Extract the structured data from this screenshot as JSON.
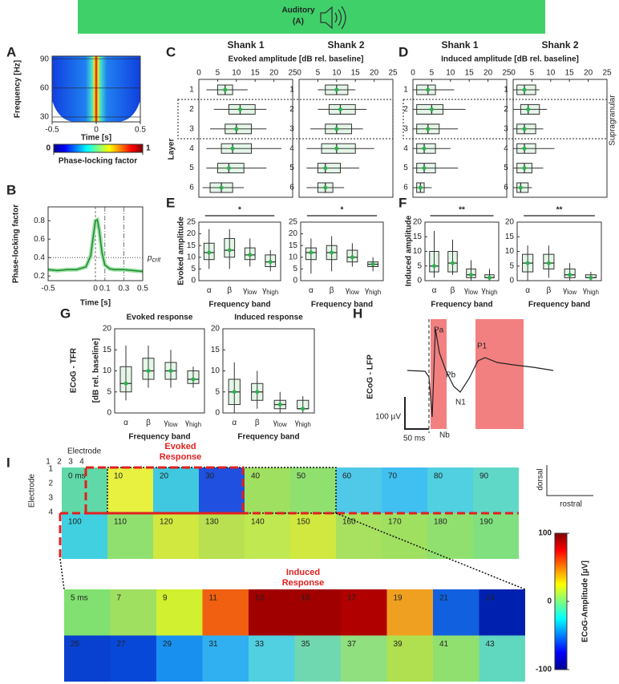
{
  "header": {
    "title": "Auditory",
    "subtitle": "(A)"
  },
  "A": {
    "label": "A",
    "ylabel": "Frequency [Hz]",
    "xlabel": "Time [s]",
    "xlim": [
      -0.5,
      0.5
    ],
    "xticks": [
      -0.5,
      0,
      0.5
    ],
    "ylim": [
      25,
      93
    ],
    "yticks": [
      30,
      60,
      90
    ],
    "colorbar": {
      "label": "Phase-locking factor",
      "lim": [
        0,
        1
      ],
      "ticks": [
        0,
        1
      ]
    }
  },
  "B": {
    "label": "B",
    "type": "line",
    "ylabel": "Phase-locking factor",
    "xlabel": "Time [s]",
    "xlim": [
      -0.5,
      0.5
    ],
    "ylim": [
      0.15,
      0.95
    ],
    "xticks": [
      -0.5,
      0,
      0.1,
      0.3,
      0.5
    ],
    "yticks": [
      0.2,
      0.4,
      0.6,
      0.8
    ],
    "color": "#1a8a2a",
    "x": [
      -0.5,
      -0.4,
      -0.3,
      -0.2,
      -0.1,
      -0.05,
      -0.02,
      0,
      0.02,
      0.04,
      0.07,
      0.1,
      0.15,
      0.2,
      0.3,
      0.4,
      0.5
    ],
    "y": [
      0.27,
      0.26,
      0.27,
      0.27,
      0.3,
      0.42,
      0.65,
      0.8,
      0.81,
      0.7,
      0.45,
      0.32,
      0.28,
      0.27,
      0.27,
      0.26,
      0.25
    ],
    "threshold": {
      "name": "p",
      "sub": "crit",
      "value": 0.4
    }
  },
  "C": {
    "label": "C",
    "title": "Evoked amplitude [dB rel. baseline]",
    "ylabel": "Layer",
    "xlim": [
      0,
      25
    ],
    "xticks": [
      0,
      5,
      10,
      15,
      20,
      25
    ],
    "layers": [
      1,
      2,
      3,
      4,
      5,
      6
    ],
    "shanks": [
      {
        "name": "Shank 1",
        "boxes": [
          [
            2,
            5,
            7,
            9,
            13
          ],
          [
            4,
            8,
            11,
            15,
            18
          ],
          [
            3,
            7,
            10,
            14,
            18
          ],
          [
            2,
            6,
            9,
            14,
            22
          ],
          [
            2,
            5,
            8,
            12,
            18
          ],
          [
            1,
            3,
            6,
            9,
            12
          ]
        ]
      },
      {
        "name": "Shank 2",
        "boxes": [
          [
            5,
            7,
            10,
            13,
            15
          ],
          [
            5,
            8,
            11,
            15,
            18
          ],
          [
            3,
            7,
            10,
            14,
            17
          ],
          [
            2,
            6,
            10,
            15,
            20
          ],
          [
            2,
            5,
            7,
            11,
            16
          ],
          [
            2,
            5,
            7,
            9,
            12
          ]
        ]
      }
    ]
  },
  "D": {
    "label": "D",
    "title": "Induced amplitude [dB rel. baseline]",
    "annotation": "Supragranular",
    "xlim": [
      0,
      25
    ],
    "xticks": [
      0,
      5,
      10,
      15,
      20,
      25
    ],
    "layers": [
      1,
      2,
      3,
      4,
      5,
      6
    ],
    "shanks": [
      {
        "name": "Shank 1",
        "boxes": [
          [
            0,
            1,
            4,
            6,
            11
          ],
          [
            0,
            1,
            5,
            8,
            14
          ],
          [
            0,
            1,
            4,
            7,
            12
          ],
          [
            0,
            1,
            3,
            6,
            10
          ],
          [
            0,
            1,
            3,
            6,
            12
          ],
          [
            0,
            1,
            2,
            3,
            5
          ]
        ]
      },
      {
        "name": "Shank 2",
        "boxes": [
          [
            0,
            1,
            3,
            6,
            7
          ],
          [
            0,
            2,
            4,
            7,
            9
          ],
          [
            0,
            1,
            3,
            6,
            8
          ],
          [
            0,
            1,
            3,
            6,
            11
          ],
          [
            0,
            1,
            3,
            5,
            8
          ],
          [
            0,
            1,
            2,
            4,
            5
          ]
        ]
      }
    ]
  },
  "E": {
    "label": "E",
    "ylabel": "Evoked amplitude",
    "xlabel": "Frequency band",
    "ylim": [
      0,
      25
    ],
    "yticks": [
      0,
      5,
      10,
      15,
      20,
      25
    ],
    "categories": [
      {
        "name": "α"
      },
      {
        "name": "β"
      },
      {
        "name": "γ",
        "sub": "low"
      },
      {
        "name": "γ",
        "sub": "high"
      }
    ],
    "groups": [
      {
        "significance": "*",
        "boxes": [
          [
            5,
            9,
            12,
            16,
            22
          ],
          [
            5,
            10,
            13,
            18,
            22
          ],
          [
            6,
            9,
            11,
            14,
            18
          ],
          [
            4,
            6,
            8,
            11,
            13
          ]
        ]
      },
      {
        "significance": "*",
        "boxes": [
          [
            3,
            9,
            12,
            14,
            18
          ],
          [
            4,
            9,
            12,
            15,
            19
          ],
          [
            6,
            8,
            10,
            13,
            16
          ],
          [
            4,
            6,
            7,
            8,
            10
          ]
        ]
      }
    ]
  },
  "F": {
    "label": "F",
    "ylabel": "Induced amplitude",
    "xlabel": "Frequency band",
    "ylim": [
      0,
      20
    ],
    "yticks": [
      0,
      5,
      10,
      15,
      20
    ],
    "categories": [
      {
        "name": "α"
      },
      {
        "name": "β"
      },
      {
        "name": "γ",
        "sub": "low"
      },
      {
        "name": "γ",
        "sub": "high"
      }
    ],
    "groups": [
      {
        "significance": "**",
        "boxes": [
          [
            1,
            3,
            5,
            10,
            17
          ],
          [
            2,
            3,
            6,
            10,
            14
          ],
          [
            0,
            1,
            2,
            4,
            7
          ],
          [
            0,
            1,
            1,
            2,
            4
          ]
        ]
      },
      {
        "significance": "**",
        "boxes": [
          [
            0,
            3,
            6,
            9,
            12
          ],
          [
            1,
            4,
            6,
            9,
            12
          ],
          [
            0,
            1,
            2,
            4,
            6
          ],
          [
            0,
            1,
            1,
            2,
            3
          ]
        ]
      }
    ]
  },
  "G": {
    "label": "G",
    "side_label": "ECoG - TFR",
    "ylabel": "[dB rel. baseline]",
    "xlabel": "Frequency band",
    "ylim": [
      0,
      20
    ],
    "yticks": [
      0,
      5,
      10,
      15,
      20
    ],
    "categories": [
      {
        "name": "α"
      },
      {
        "name": "β"
      },
      {
        "name": "γ",
        "sub": "low"
      },
      {
        "name": "γ",
        "sub": "high"
      }
    ],
    "groups": [
      {
        "title": "Evoked response",
        "boxes": [
          [
            3,
            5,
            7,
            11,
            16
          ],
          [
            6,
            8,
            10,
            13,
            16
          ],
          [
            6,
            8,
            10,
            12,
            15
          ],
          [
            6,
            7,
            8,
            10,
            11
          ]
        ]
      },
      {
        "title": "Induced response",
        "boxes": [
          [
            0,
            2,
            5,
            8,
            12
          ],
          [
            1,
            3,
            5,
            7,
            10
          ],
          [
            0,
            1,
            2,
            3,
            5
          ],
          [
            0,
            1,
            1,
            3,
            4
          ]
        ]
      }
    ]
  },
  "H": {
    "label": "H",
    "side_label": "ECoG - LFP",
    "peaks": [
      "Pa",
      "Pb",
      "N1",
      "P1",
      "Nb"
    ],
    "scale_y": "100 µV",
    "scale_x": "50 ms"
  },
  "I": {
    "label": "I",
    "electrode_label": "Electrode",
    "electrodes": [
      1,
      2,
      3,
      4
    ],
    "evoked_label": [
      "Evoked",
      "Response"
    ],
    "induced_label": [
      "Induced",
      "Response"
    ],
    "orientation": [
      "dorsal",
      "rostral"
    ],
    "tiles_row1": [
      "0 ms",
      "10",
      "20",
      "30",
      "40",
      "50",
      "60",
      "70",
      "80",
      "90"
    ],
    "tiles_row2": [
      "100",
      "110",
      "120",
      "130",
      "140",
      "150",
      "160",
      "170",
      "180",
      "190"
    ],
    "zoom_row1": [
      "5 ms",
      "7",
      "9",
      "11",
      "13",
      "15",
      "17",
      "19",
      "21",
      "23"
    ],
    "zoom_row2": [
      "25",
      "27",
      "29",
      "31",
      "33",
      "35",
      "37",
      "39",
      "41",
      "43"
    ],
    "colorbar": {
      "label": "ECoG-Amplitude [µV]",
      "lim": [
        -100,
        100
      ],
      "ticks": [
        100,
        0,
        -100
      ]
    }
  }
}
